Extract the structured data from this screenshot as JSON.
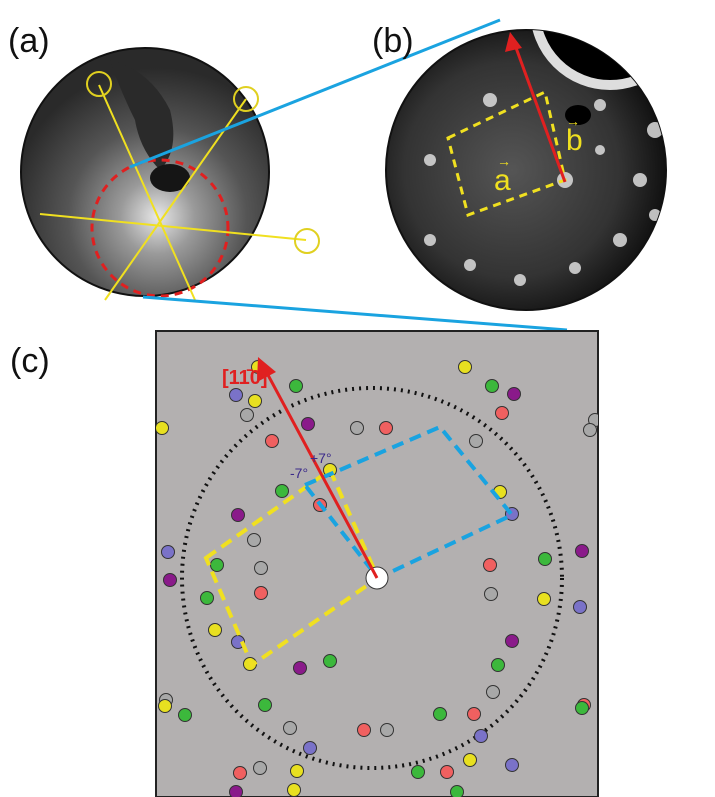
{
  "panels": {
    "a": {
      "label": "(a)"
    },
    "b": {
      "label": "(b)",
      "vector_a": "a",
      "vector_b": "b"
    },
    "c": {
      "label": "(c)",
      "direction": "[11̄0]",
      "angle_plus": "+7°",
      "angle_minus": "-7°"
    }
  }
}
